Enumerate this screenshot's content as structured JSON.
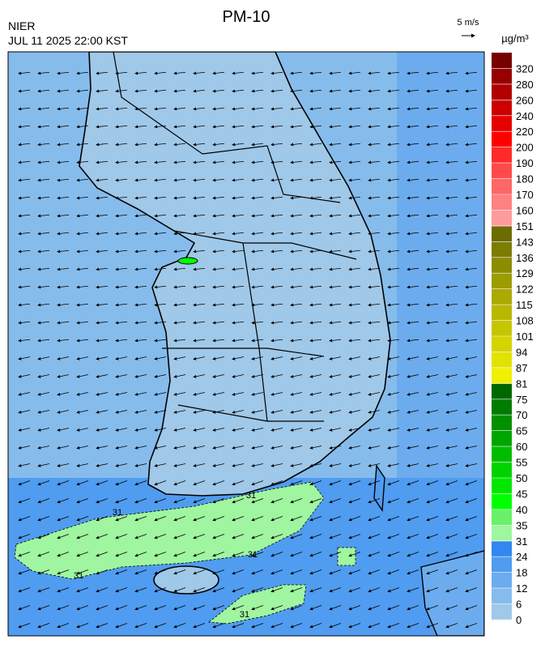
{
  "header": {
    "title": "PM-10",
    "agency": "NIER",
    "datetime": "JUL 11 2025 22:00 KST",
    "wind_scale": "5 m/s",
    "unit": "µg/m³"
  },
  "contour_labels": [
    31,
    31,
    31,
    31,
    31
  ],
  "colorbar": {
    "labels": [
      0,
      6,
      12,
      18,
      24,
      31,
      35,
      40,
      45,
      50,
      55,
      60,
      65,
      70,
      75,
      81,
      87,
      94,
      101,
      108,
      115,
      122,
      129,
      136,
      143,
      151,
      160,
      170,
      180,
      190,
      200,
      220,
      240,
      260,
      280,
      320
    ],
    "colors": [
      "#a0c8e8",
      "#86bcec",
      "#6cacee",
      "#509cf0",
      "#3088f0",
      "#a0f5a0",
      "#6af06a",
      "#00ff00",
      "#00e800",
      "#00d200",
      "#00bc00",
      "#00a600",
      "#009000",
      "#007c00",
      "#006800",
      "#f0f000",
      "#e2e200",
      "#d4d400",
      "#c6c600",
      "#b8b800",
      "#aaaa00",
      "#9c9c00",
      "#8c8c00",
      "#7c7c00",
      "#6c6c00",
      "#ff9a9a",
      "#ff8080",
      "#ff6666",
      "#ff4a4a",
      "#ff2a2a",
      "#ff0000",
      "#e60000",
      "#cc0000",
      "#b00000",
      "#960000",
      "#760000"
    ]
  }
}
